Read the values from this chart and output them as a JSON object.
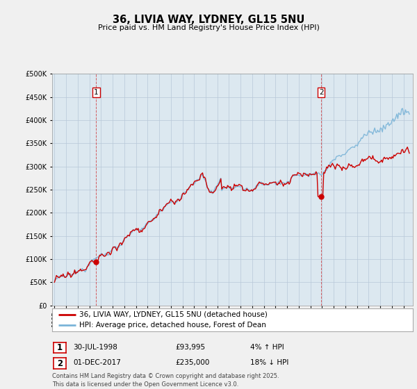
{
  "title": "36, LIVIA WAY, LYDNEY, GL15 5NU",
  "subtitle": "Price paid vs. HM Land Registry's House Price Index (HPI)",
  "legend_line1": "36, LIVIA WAY, LYDNEY, GL15 5NU (detached house)",
  "legend_line2": "HPI: Average price, detached house, Forest of Dean",
  "sale1_label": "1",
  "sale1_date": "30-JUL-1998",
  "sale1_price": "£93,995",
  "sale1_hpi": "4% ↑ HPI",
  "sale2_label": "2",
  "sale2_date": "01-DEC-2017",
  "sale2_price": "£235,000",
  "sale2_hpi": "18% ↓ HPI",
  "footer": "Contains HM Land Registry data © Crown copyright and database right 2025.\nThis data is licensed under the Open Government Licence v3.0.",
  "hpi_color": "#7ab4d8",
  "price_color": "#cc0000",
  "vline_color": "#cc0000",
  "background_color": "#f0f0f0",
  "plot_bg_color": "#dce8f0",
  "ylim": [
    0,
    500000
  ],
  "yticks": [
    0,
    50000,
    100000,
    150000,
    200000,
    250000,
    300000,
    350000,
    400000,
    450000,
    500000
  ],
  "sale1_year": 1998.58,
  "sale1_value": 93995,
  "sale2_year": 2017.92,
  "sale2_value": 235000
}
